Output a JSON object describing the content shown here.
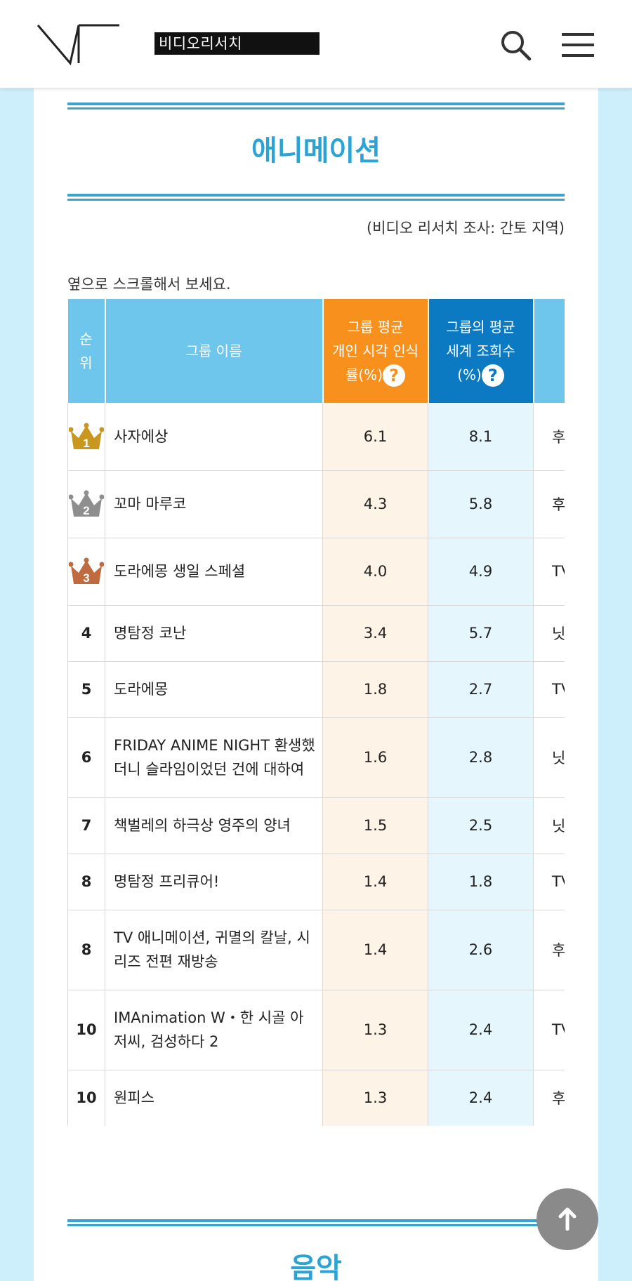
{
  "header": {
    "logo_text": "비디오리서치",
    "icons": {
      "search": "search-icon",
      "menu": "hamburger-menu-icon",
      "logo": "vr-logo-icon"
    }
  },
  "section": {
    "title": "애니메이션",
    "source_note": "(비디오 리서치 조사: 간토 지역)",
    "scroll_hint": "옆으로 스크롤해서 보세요."
  },
  "table": {
    "headers": {
      "rank_line1": "순",
      "rank_line2": "위",
      "name": "그룹 이름",
      "avg_line1": "그룹 평균",
      "avg_line2": "개인 시각 인식",
      "avg_line3": "률(%)",
      "world_line1": "그룹의 평균",
      "world_line2": "세계 조회수",
      "world_line3": "(%)",
      "help_glyph": "?"
    },
    "rows": [
      {
        "rank": "1",
        "name": "사자에상",
        "avg": "6.1",
        "world": "8.1",
        "extra": "후",
        "crown": "gold"
      },
      {
        "rank": "2",
        "name": "꼬마 마루코",
        "avg": "4.3",
        "world": "5.8",
        "extra": "후",
        "crown": "silver"
      },
      {
        "rank": "3",
        "name": "도라에몽 생일 스페셜",
        "avg": "4.0",
        "world": "4.9",
        "extra": "TV",
        "crown": "bronze"
      },
      {
        "rank": "4",
        "name": "명탐정 코난",
        "avg": "3.4",
        "world": "5.7",
        "extra": "닛",
        "crown": ""
      },
      {
        "rank": "5",
        "name": "도라에몽",
        "avg": "1.8",
        "world": "2.7",
        "extra": "TV",
        "crown": ""
      },
      {
        "rank": "6",
        "name": "FRIDAY ANIME NIGHT 환생했더니 슬라임이었던 건에 대하여",
        "avg": "1.6",
        "world": "2.8",
        "extra": "닛",
        "crown": ""
      },
      {
        "rank": "7",
        "name": "책벌레의 하극상 영주의 양녀",
        "avg": "1.5",
        "world": "2.5",
        "extra": "닛",
        "crown": ""
      },
      {
        "rank": "8",
        "name": "명탐정 프리큐어!",
        "avg": "1.4",
        "world": "1.8",
        "extra": "TV",
        "crown": ""
      },
      {
        "rank": "8",
        "name": "TV 애니메이션, 귀멸의 칼날, 시리즈 전편 재방송",
        "avg": "1.4",
        "world": "2.6",
        "extra": "후",
        "crown": ""
      },
      {
        "rank": "10",
        "name": "IMAnimation W・한 시골 아저씨, 검성하다 2",
        "avg": "1.3",
        "world": "2.4",
        "extra": "TV",
        "crown": ""
      },
      {
        "rank": "10",
        "name": "원피스",
        "avg": "1.3",
        "world": "2.4",
        "extra": "후",
        "crown": ""
      }
    ]
  },
  "next_section": {
    "title": "음악"
  },
  "scroll_top": {
    "icon": "arrow-up-icon"
  },
  "colors": {
    "accent": "#2ba3d4",
    "header_light": "#6fc6ec",
    "header_orange": "#f8901e",
    "header_blue": "#0b7ac2",
    "crown_gold": "#c9961e",
    "crown_silver": "#8e8e8e",
    "crown_bronze": "#c06a3f"
  }
}
